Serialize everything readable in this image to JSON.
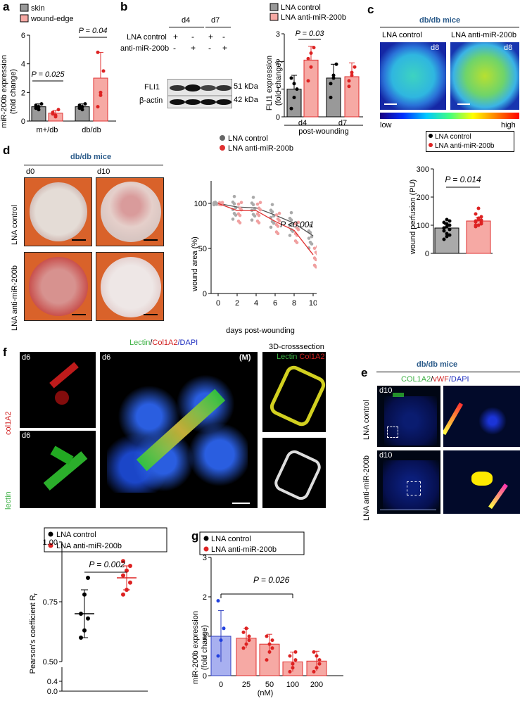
{
  "panels": {
    "a": "a",
    "b": "b",
    "c": "c",
    "d": "d",
    "e": "e",
    "f": "f",
    "g": "g"
  },
  "a": {
    "legend": [
      "skin",
      "wound-edge"
    ],
    "ylabel": "miR-200b expression\n(fold change)",
    "yticks": [
      "0",
      "2",
      "4",
      "6"
    ],
    "xcats": [
      "m+/db",
      "db/db"
    ],
    "p1": "P = 0.025",
    "p2": "P = 0.04"
  },
  "b": {
    "d4": "d4",
    "d7": "d7",
    "row1": "LNA control",
    "row2": "anti-miR-200b",
    "band1": "FLI1",
    "band2": "β-actin",
    "kda1": "51 kDa",
    "kda2": "42 kDa",
    "legend": [
      "LNA control",
      "LNA anti-miR-200b"
    ],
    "ylabel": "FLI1 expression\n(fold change)",
    "yticks": [
      "0",
      "1",
      "2",
      "3"
    ],
    "xcats": [
      "d4",
      "d7"
    ],
    "xtitle": "post-wounding",
    "p": "P = 0.03"
  },
  "c": {
    "title": "db/db mice",
    "img1": "LNA control",
    "img2": "LNA anti-miR-200b",
    "day": "d8",
    "low": "low",
    "high": "high",
    "legend": [
      "LNA control",
      "LNA anti-miR-200b"
    ],
    "ylabel": "wound perfusion (PU)",
    "yticks": [
      "0",
      "100",
      "200",
      "300"
    ],
    "p": "P = 0.014"
  },
  "d": {
    "title": "db/db mice",
    "d0": "d0",
    "d10": "d10",
    "row1": "LNA control",
    "row2": "LNA anti-miR-200b",
    "legend": [
      "LNA control",
      "LNA anti-miR-200b"
    ],
    "ylabel": "wound area (%)",
    "xlabel": "days post-wounding",
    "yticks": [
      "0",
      "50",
      "100"
    ],
    "xticks": [
      "0",
      "2",
      "4",
      "6",
      "8",
      "10"
    ],
    "p": "P <0.001"
  },
  "e": {
    "title": "db/db mice",
    "stain": [
      "COL1A2",
      "/",
      "vWF",
      "/DAPI"
    ],
    "d10": "d10",
    "row1": "LNA control",
    "row2": "LNA anti-miR-200b"
  },
  "f": {
    "header": [
      "Lectin",
      "/",
      "Col1A2",
      "/DAPI"
    ],
    "cross": "3D-crosssection",
    "crossLabel": [
      "Lectin",
      "Col1A2"
    ],
    "d6": "d6",
    "m": "(M)",
    "col1a2": "col1A2",
    "lectin": "lectin",
    "legend": [
      "LNA control",
      "LNA anti-miR-200b"
    ],
    "ylabel": "Pearson's coefficient R",
    "ysub": "r",
    "yticks": [
      "0.0",
      "0.4",
      "0.50",
      "0.75",
      "1.00"
    ],
    "p": "P = 0.002"
  },
  "g": {
    "legend": [
      "LNA control",
      "LNA anti-miR-200b"
    ],
    "ylabel": "miR-200b expression\n(fold change)",
    "yticks": [
      "0",
      "1",
      "2",
      "3"
    ],
    "xcats": [
      "0",
      "25",
      "50",
      "100",
      "200"
    ],
    "xunit": "(nM)",
    "p": "P = 0.026"
  },
  "chart_data": [
    {
      "panel": "a",
      "type": "bar",
      "categories": [
        "m+/db",
        "db/db"
      ],
      "series": [
        {
          "name": "skin",
          "values": [
            1.0,
            1.0
          ]
        },
        {
          "name": "wound-edge",
          "values": [
            0.55,
            3.0
          ]
        }
      ],
      "ylabel": "miR-200b expression (fold change)",
      "ylim": [
        0,
        6
      ]
    },
    {
      "panel": "b",
      "type": "bar",
      "categories": [
        "d4",
        "d7"
      ],
      "series": [
        {
          "name": "LNA control",
          "values": [
            1.0,
            1.4
          ]
        },
        {
          "name": "LNA anti-miR-200b",
          "values": [
            2.05,
            1.45
          ]
        }
      ],
      "ylabel": "FLI1 expression (fold change)",
      "ylim": [
        0,
        3
      ]
    },
    {
      "panel": "c",
      "type": "bar",
      "categories": [
        "LNA control",
        "LNA anti-miR-200b"
      ],
      "values": [
        90,
        115
      ],
      "ylabel": "wound perfusion (PU)",
      "ylim": [
        0,
        300
      ]
    },
    {
      "panel": "d",
      "type": "line",
      "x": [
        0,
        2,
        4,
        6,
        8,
        10
      ],
      "series": [
        {
          "name": "LNA control",
          "values": [
            100,
            96,
            95,
            87,
            78,
            64
          ]
        },
        {
          "name": "LNA anti-miR-200b",
          "values": [
            100,
            92,
            92,
            80,
            70,
            43
          ]
        }
      ],
      "ylabel": "wound area (%)",
      "xlabel": "days post-wounding",
      "ylim": [
        0,
        125
      ]
    },
    {
      "panel": "f",
      "type": "scatter",
      "categories": [
        "LNA control",
        "LNA anti-miR-200b"
      ],
      "values": [
        0.7,
        0.85
      ],
      "ylabel": "Pearson's coefficient Rr"
    },
    {
      "panel": "g",
      "type": "bar",
      "categories": [
        "0",
        "25",
        "50",
        "100",
        "200"
      ],
      "values": [
        1.0,
        0.95,
        0.8,
        0.35,
        0.37
      ],
      "ylabel": "miR-200b expression (fold change)",
      "xlabel": "(nM)",
      "ylim": [
        0,
        3
      ]
    }
  ]
}
